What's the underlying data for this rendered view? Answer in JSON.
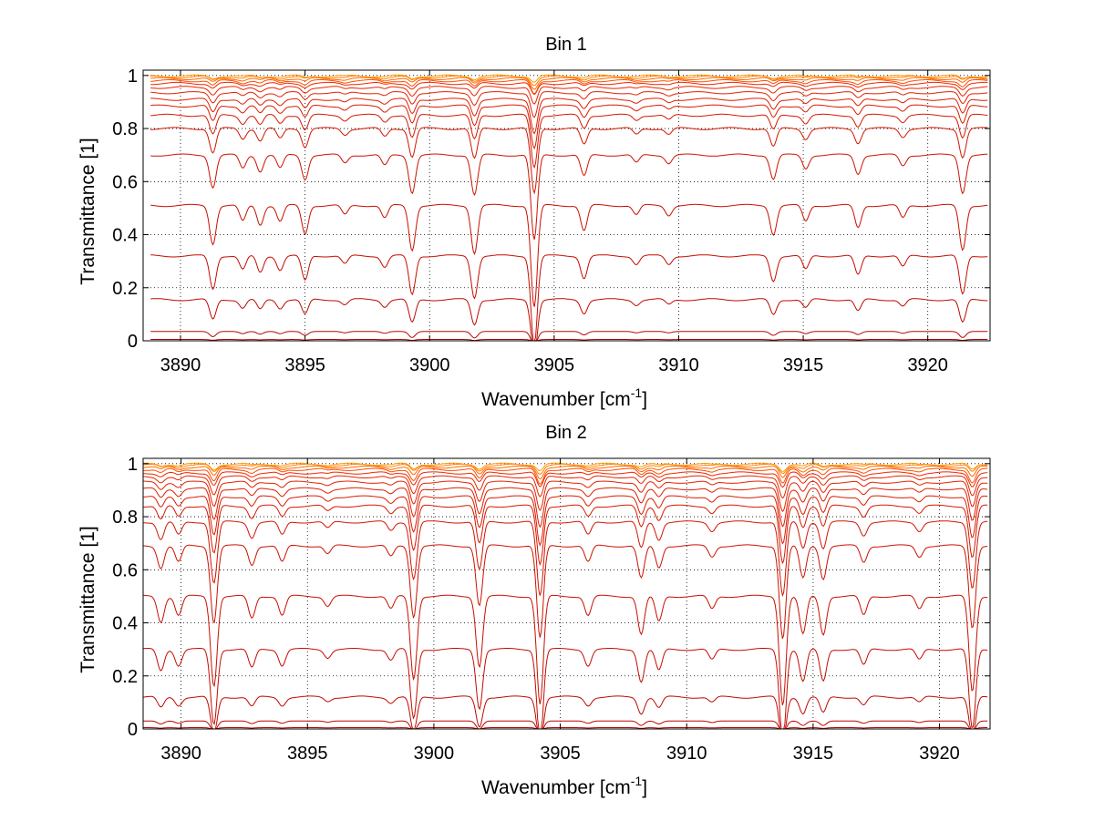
{
  "chart_data": [
    {
      "type": "line",
      "title": "Bin 1",
      "xlabel_main": "Wavenumber [cm",
      "xlabel_sup": "-1",
      "xlabel_end": "]",
      "ylabel": "Transmittance [1]",
      "xlim": [
        3888.5,
        3922.5
      ],
      "ylim": [
        0,
        1.02
      ],
      "x_range": [
        3888.8,
        3922.4
      ],
      "xticks": [
        3890,
        3895,
        3900,
        3905,
        3910,
        3915,
        3920
      ],
      "xtick_labels": [
        "3890",
        "3895",
        "3900",
        "3905",
        "3910",
        "3915",
        "3920"
      ],
      "yticks": [
        0,
        0.2,
        0.4,
        0.6,
        0.8,
        1
      ],
      "ytick_labels": [
        "0",
        "0.2",
        "0.4",
        "0.6",
        "0.8",
        "1"
      ],
      "grid": true,
      "series_count": 18,
      "baselines": [
        0.0,
        0.005,
        0.035,
        0.155,
        0.32,
        0.51,
        0.7,
        0.8,
        0.85,
        0.885,
        0.91,
        0.935,
        0.955,
        0.97,
        0.98,
        0.988,
        0.994,
        0.998
      ],
      "absorption_lines": [
        {
          "x": 3891.3,
          "depth": 0.12
        },
        {
          "x": 3892.5,
          "depth": 0.05
        },
        {
          "x": 3893.2,
          "depth": 0.06
        },
        {
          "x": 3894.0,
          "depth": 0.05
        },
        {
          "x": 3895.0,
          "depth": 0.09
        },
        {
          "x": 3896.6,
          "depth": 0.03
        },
        {
          "x": 3898.2,
          "depth": 0.04
        },
        {
          "x": 3899.3,
          "depth": 0.14
        },
        {
          "x": 3901.8,
          "depth": 0.15
        },
        {
          "x": 3904.2,
          "depth": 0.32
        },
        {
          "x": 3906.2,
          "depth": 0.08
        },
        {
          "x": 3908.3,
          "depth": 0.03
        },
        {
          "x": 3909.6,
          "depth": 0.03
        },
        {
          "x": 3913.8,
          "depth": 0.09
        },
        {
          "x": 3915.1,
          "depth": 0.05
        },
        {
          "x": 3917.2,
          "depth": 0.07
        },
        {
          "x": 3919.0,
          "depth": 0.04
        },
        {
          "x": 3921.4,
          "depth": 0.14
        }
      ]
    },
    {
      "type": "line",
      "title": "Bin 2",
      "xlabel_main": "Wavenumber [cm",
      "xlabel_sup": "-1",
      "xlabel_end": "]",
      "ylabel": "Transmittance [1]",
      "xlim": [
        3888.5,
        3922.0
      ],
      "ylim": [
        0,
        1.02
      ],
      "x_range": [
        3888.5,
        3921.9
      ],
      "xticks": [
        3890,
        3895,
        3900,
        3905,
        3910,
        3915,
        3920
      ],
      "xtick_labels": [
        "3890",
        "3895",
        "3900",
        "3905",
        "3910",
        "3915",
        "3920"
      ],
      "yticks": [
        0,
        0.2,
        0.4,
        0.6,
        0.8,
        1
      ],
      "ytick_labels": [
        "0",
        "0.2",
        "0.4",
        "0.6",
        "0.8",
        "1"
      ],
      "grid": true,
      "series_count": 18,
      "baselines": [
        0.0,
        0.005,
        0.03,
        0.12,
        0.3,
        0.5,
        0.69,
        0.78,
        0.84,
        0.875,
        0.905,
        0.93,
        0.95,
        0.965,
        0.978,
        0.987,
        0.994,
        0.998
      ],
      "absorption_lines": [
        {
          "x": 3889.2,
          "depth": 0.08
        },
        {
          "x": 3889.9,
          "depth": 0.06
        },
        {
          "x": 3891.3,
          "depth": 0.28
        },
        {
          "x": 3892.8,
          "depth": 0.07
        },
        {
          "x": 3894.0,
          "depth": 0.06
        },
        {
          "x": 3895.8,
          "depth": 0.03
        },
        {
          "x": 3898.3,
          "depth": 0.04
        },
        {
          "x": 3899.2,
          "depth": 0.26
        },
        {
          "x": 3901.8,
          "depth": 0.22
        },
        {
          "x": 3904.2,
          "depth": 0.34
        },
        {
          "x": 3906.1,
          "depth": 0.06
        },
        {
          "x": 3908.2,
          "depth": 0.12
        },
        {
          "x": 3908.9,
          "depth": 0.08
        },
        {
          "x": 3911.0,
          "depth": 0.04
        },
        {
          "x": 3913.8,
          "depth": 0.34
        },
        {
          "x": 3914.6,
          "depth": 0.12
        },
        {
          "x": 3915.4,
          "depth": 0.12
        },
        {
          "x": 3917.0,
          "depth": 0.06
        },
        {
          "x": 3919.2,
          "depth": 0.04
        },
        {
          "x": 3921.3,
          "depth": 0.3
        }
      ]
    }
  ]
}
